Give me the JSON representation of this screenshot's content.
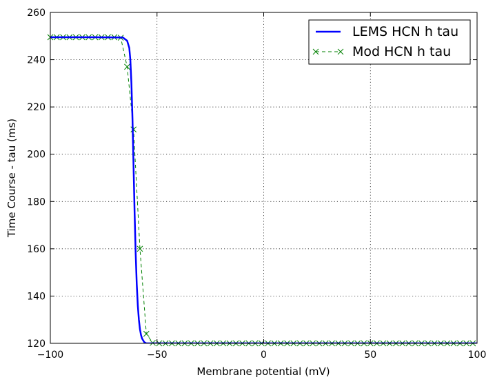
{
  "chart_data": {
    "type": "line",
    "xlabel": "Membrane potential (mV)",
    "ylabel": "Time Course - tau (ms)",
    "xlim": [
      -100,
      100
    ],
    "ylim": [
      120,
      260
    ],
    "xticks": [
      -100,
      -50,
      0,
      50,
      100
    ],
    "yticks": [
      120,
      140,
      160,
      180,
      200,
      220,
      240,
      260
    ],
    "xtick_labels": [
      "−100",
      "−50",
      "0",
      "50",
      "100"
    ],
    "ytick_labels": [
      "120",
      "140",
      "160",
      "180",
      "200",
      "220",
      "240",
      "260"
    ],
    "grid": true,
    "legend_position": "top-right",
    "series": [
      {
        "name": "LEMS HCN h tau",
        "color": "#0000ff",
        "style": "solid",
        "x": [
          -100,
          -80,
          -66,
          -64,
          -63,
          -62.5,
          -62,
          -61.5,
          -61,
          -60.5,
          -60,
          -59.5,
          -59,
          -58.5,
          -58,
          -57.5,
          -57,
          -56,
          -55,
          -50,
          0,
          50,
          100
        ],
        "y": [
          249.5,
          249.5,
          249.4,
          248,
          245,
          240,
          230,
          215,
          195,
          175,
          158,
          145,
          136,
          130,
          126,
          123.5,
          122,
          120.5,
          120,
          120,
          120,
          120,
          120
        ]
      },
      {
        "name": "Mod HCN h tau",
        "color": "#008000",
        "style": "dashed",
        "marker": "x",
        "x": [
          -100,
          -97,
          -94,
          -91,
          -88,
          -85,
          -82,
          -79,
          -76,
          -73,
          -70,
          -67,
          -64,
          -61,
          -58,
          -55,
          -52,
          -49,
          -46,
          -43,
          -40,
          -37,
          -34,
          -31,
          -28,
          -25,
          -22,
          -19,
          -16,
          -13,
          -10,
          -7,
          -4,
          -1,
          2,
          5,
          8,
          11,
          14,
          17,
          20,
          23,
          26,
          29,
          32,
          35,
          38,
          41,
          44,
          47,
          50,
          53,
          56,
          59,
          62,
          65,
          68,
          71,
          74,
          77,
          80,
          83,
          86,
          89,
          92,
          95,
          98
        ],
        "y": [
          249.5,
          249.5,
          249.5,
          249.5,
          249.5,
          249.5,
          249.5,
          249.5,
          249.5,
          249.5,
          249.5,
          249.3,
          237,
          210.5,
          160,
          124,
          120.2,
          120,
          120,
          120,
          120,
          120,
          120,
          120,
          120,
          120,
          120,
          120,
          120,
          120,
          120,
          120,
          120,
          120,
          120,
          120,
          120,
          120,
          120,
          120,
          120,
          120,
          120,
          120,
          120,
          120,
          120,
          120,
          120,
          120,
          120,
          120,
          120,
          120,
          120,
          120,
          120,
          120,
          120,
          120,
          120,
          120,
          120,
          120,
          120,
          120,
          120
        ]
      }
    ]
  }
}
